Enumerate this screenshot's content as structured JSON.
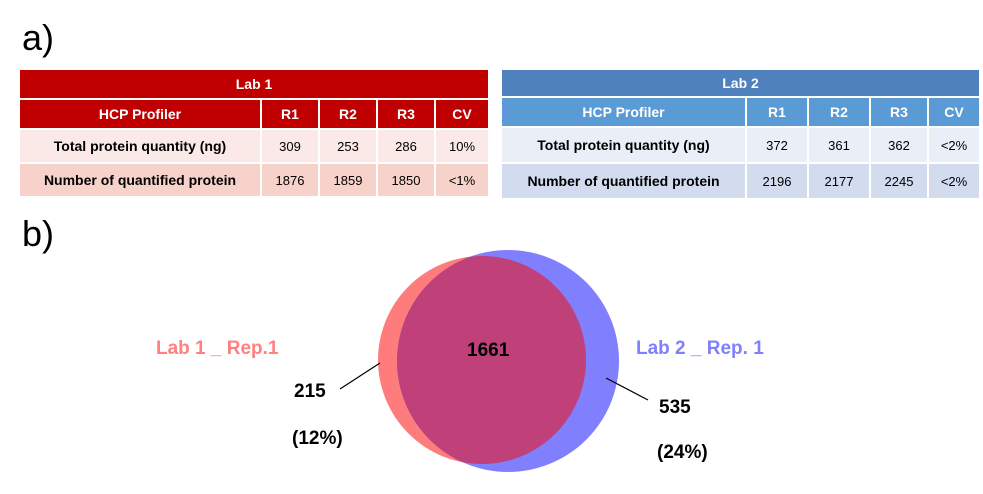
{
  "panel_a_label": "a)",
  "panel_b_label": "b)",
  "lab1": {
    "title": "Lab 1",
    "columns": [
      "HCP Profiler",
      "R1",
      "R2",
      "R3",
      "CV"
    ],
    "rows": [
      {
        "label": "Total protein quantity (ng)",
        "values": [
          "309",
          "253",
          "286",
          "10%"
        ]
      },
      {
        "label": "Number of quantified protein",
        "values": [
          "1876",
          "1859",
          "1850",
          "<1%"
        ]
      }
    ],
    "colors": {
      "header": "#c00000",
      "row1": "#fbe9e7",
      "row2": "#f7d2ca"
    }
  },
  "lab2": {
    "title": "Lab 2",
    "columns": [
      "HCP Profiler",
      "R1",
      "R2",
      "R3",
      "CV"
    ],
    "rows": [
      {
        "label": "Total protein quantity (ng)",
        "values": [
          "372",
          "361",
          "362",
          "<2%"
        ]
      },
      {
        "label": "Number of quantified protein",
        "values": [
          "2196",
          "2177",
          "2245",
          "<2%"
        ]
      }
    ],
    "colors": {
      "title": "#4f81bd",
      "header": "#5b9bd5",
      "row1": "#e9eef7",
      "row2": "#d2dcee"
    }
  },
  "venn": {
    "left_set_label": "Lab 1 _ Rep.1",
    "right_set_label": "Lab 2 _ Rep. 1",
    "overlap_count": "1661",
    "left_only_count": "215",
    "left_only_percent": "(12%)",
    "right_only_count": "535",
    "right_only_percent": "(24%)",
    "colors": {
      "left": "#ff7c7c",
      "right": "#8080ff",
      "overlap": "#c0407a",
      "left_label": "#ff8080",
      "right_label": "#8080ff"
    }
  }
}
